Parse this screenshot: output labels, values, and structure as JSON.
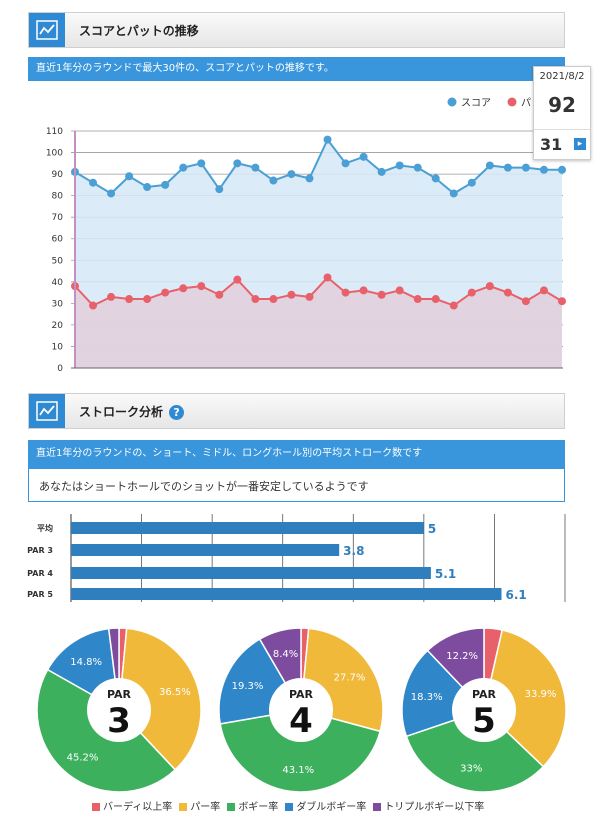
{
  "section1": {
    "title": "スコアとパットの推移",
    "banner": "直近1年分のラウンドで最大30件の、スコアとパットの推移です。",
    "legend": [
      {
        "label": "スコア",
        "color": "#4a9fd4"
      },
      {
        "label": "パット",
        "color": "#e8616a"
      }
    ],
    "tooltip": {
      "date": "2021/8/2",
      "score": "92",
      "putt": "31",
      "next_icon": "chevron-right-icon"
    }
  },
  "section2": {
    "title": "ストローク分析",
    "help_icon": "question-icon",
    "banner": "直近1年分のラウンドの、ショート、ミドル、ロングホール別の平均ストローク数です",
    "message": "あなたはショートホールでのショットが一番安定しているようです"
  },
  "chart_data": [
    {
      "type": "line",
      "yticks": [
        "0",
        "10",
        "20",
        "30",
        "40",
        "50",
        "60",
        "70",
        "80",
        "90",
        "100",
        "110"
      ],
      "ylim": [
        0,
        110
      ],
      "grid": true,
      "legend_position": "top-right",
      "series": [
        {
          "name": "スコア",
          "color": "#4a9fd4",
          "fill": "#d5e8f6",
          "values": [
            91,
            86,
            81,
            89,
            84,
            85,
            93,
            95,
            83,
            95,
            93,
            87,
            90,
            88,
            106,
            95,
            98,
            91,
            94,
            93,
            88,
            81,
            86,
            94,
            93,
            93,
            92,
            92
          ]
        },
        {
          "name": "パット",
          "color": "#e8616a",
          "fill": "#e2cfdc",
          "values": [
            38,
            29,
            33,
            32,
            32,
            35,
            37,
            38,
            34,
            41,
            32,
            32,
            34,
            33,
            42,
            35,
            36,
            34,
            36,
            32,
            32,
            29,
            35,
            38,
            35,
            31,
            36,
            31
          ]
        }
      ]
    },
    {
      "type": "bar",
      "orientation": "horizontal",
      "categories": [
        "平均",
        "PAR 3",
        "PAR 4",
        "PAR 5"
      ],
      "values": [
        5,
        3.8,
        5.1,
        6.1
      ],
      "value_labels": [
        "5",
        "3.8",
        "5.1",
        "6.1"
      ],
      "color": "#2f7fbf",
      "xlim": [
        0,
        7
      ],
      "grid": true
    },
    {
      "type": "pie",
      "center_label": {
        "top": "PAR",
        "main": "3"
      },
      "values": [
        1.5,
        36.5,
        45.2,
        14.8,
        2.0
      ],
      "labels": [
        "",
        "36.5%",
        "45.2%",
        "14.8%",
        ""
      ]
    },
    {
      "type": "pie",
      "center_label": {
        "top": "PAR",
        "main": "4"
      },
      "values": [
        1.5,
        27.7,
        43.1,
        19.3,
        8.4
      ],
      "labels": [
        "",
        "27.7%",
        "43.1%",
        "19.3%",
        "8.4%"
      ]
    },
    {
      "type": "pie",
      "center_label": {
        "top": "PAR",
        "main": "5"
      },
      "values": [
        3.6,
        33.9,
        33,
        18.3,
        12.2
      ],
      "labels": [
        "",
        "33.9%",
        "33%",
        "18.3%",
        "12.2%"
      ]
    }
  ],
  "pie_legend": [
    {
      "label": "バーディ以上率",
      "color": "#e8616a"
    },
    {
      "label": "パー率",
      "color": "#f0b93a"
    },
    {
      "label": "ボギー率",
      "color": "#3db05e"
    },
    {
      "label": "ダブルボギー率",
      "color": "#2f86c8"
    },
    {
      "label": "トリプルボギー以下率",
      "color": "#7d4c9e"
    }
  ]
}
